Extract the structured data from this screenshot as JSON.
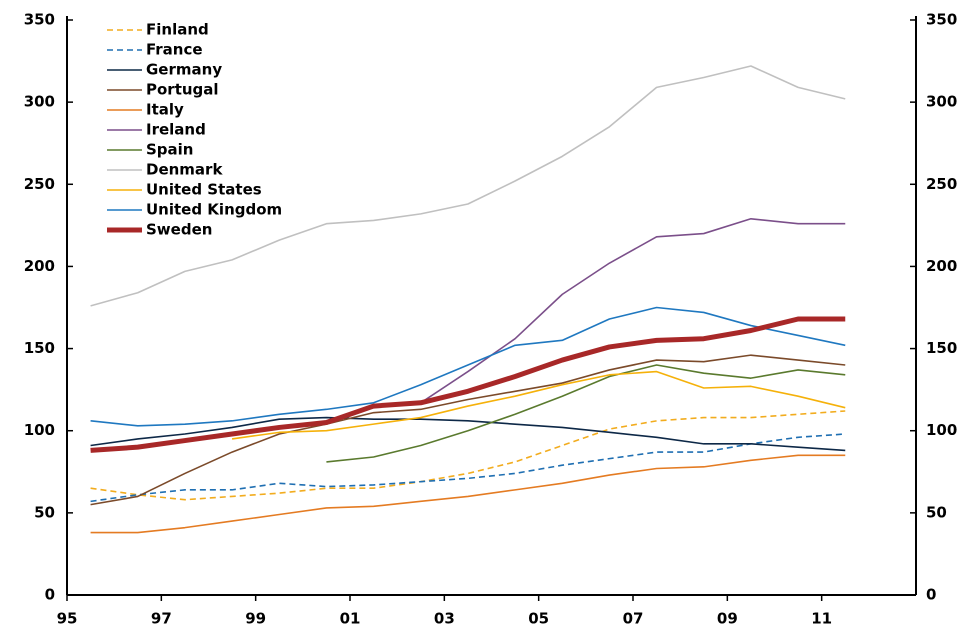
{
  "chart_data": {
    "type": "line",
    "x": [
      1995.5,
      1996.5,
      1997.5,
      1998.5,
      1999.5,
      2000.5,
      2001.5,
      2002.5,
      2003.5,
      2004.5,
      2005.5,
      2006.5,
      2007.5,
      2008.5,
      2009.5,
      2010.5,
      2011.5
    ],
    "xlim": [
      1995,
      2013
    ],
    "xticks": [
      {
        "value": 1995,
        "label": "95"
      },
      {
        "value": 1997,
        "label": "97"
      },
      {
        "value": 1999,
        "label": "99"
      },
      {
        "value": 2001,
        "label": "01"
      },
      {
        "value": 2003,
        "label": "03"
      },
      {
        "value": 2005,
        "label": "05"
      },
      {
        "value": 2007,
        "label": "07"
      },
      {
        "value": 2009,
        "label": "09"
      },
      {
        "value": 2011,
        "label": "11"
      }
    ],
    "ylim": [
      0,
      350
    ],
    "yticks": [
      0,
      50,
      100,
      150,
      200,
      250,
      300,
      350
    ],
    "y2lim": [
      0,
      350
    ],
    "y2ticks": [
      0,
      50,
      100,
      150,
      200,
      250,
      300,
      350
    ],
    "legend": "upper left",
    "grid": false,
    "series": [
      {
        "name": "Finland",
        "color": "#f2ac1e",
        "dashed": true,
        "linewidth": 1.6,
        "values": [
          65,
          61,
          58,
          60,
          62,
          65,
          65,
          69,
          74,
          81,
          91,
          101,
          106,
          108,
          108,
          110,
          112
        ]
      },
      {
        "name": "France",
        "color": "#1f6fb2",
        "dashed": true,
        "linewidth": 1.6,
        "values": [
          57,
          61,
          64,
          64,
          68,
          66,
          67,
          69,
          71,
          74,
          79,
          83,
          87,
          87,
          92,
          96,
          98
        ]
      },
      {
        "name": "Germany",
        "color": "#0d2847",
        "dashed": false,
        "linewidth": 1.6,
        "values": [
          91,
          95,
          98,
          102,
          107,
          108,
          107,
          107,
          106,
          104,
          102,
          99,
          96,
          92,
          92,
          90,
          88
        ]
      },
      {
        "name": "Portugal",
        "color": "#7b4a2a",
        "dashed": false,
        "linewidth": 1.6,
        "values": [
          55,
          60,
          74,
          87,
          98,
          104,
          111,
          113,
          119,
          124,
          129,
          137,
          143,
          142,
          146,
          143,
          140
        ]
      },
      {
        "name": "Italy",
        "color": "#e47b22",
        "dashed": false,
        "linewidth": 1.6,
        "values": [
          38,
          38,
          41,
          45,
          49,
          53,
          54,
          57,
          60,
          64,
          68,
          73,
          77,
          78,
          82,
          85,
          85
        ]
      },
      {
        "name": "Ireland",
        "color": "#7b4f8a",
        "dashed": false,
        "linewidth": 1.6,
        "values": [
          null,
          null,
          null,
          null,
          null,
          null,
          null,
          117,
          136,
          156,
          183,
          202,
          218,
          220,
          229,
          226,
          226
        ]
      },
      {
        "name": "Spain",
        "color": "#5a7a2e",
        "dashed": false,
        "linewidth": 1.6,
        "values": [
          null,
          null,
          null,
          null,
          null,
          81,
          84,
          91,
          100,
          110,
          121,
          133,
          140,
          135,
          132,
          137,
          134
        ]
      },
      {
        "name": "Denmark",
        "color": "#c0c0c0",
        "dashed": false,
        "linewidth": 1.6,
        "values": [
          176,
          184,
          197,
          204,
          216,
          226,
          228,
          232,
          238,
          252,
          267,
          285,
          309,
          315,
          322,
          309,
          302
        ]
      },
      {
        "name": "United States",
        "color": "#f5b10a",
        "dashed": false,
        "linewidth": 1.6,
        "values": [
          null,
          null,
          null,
          95,
          99,
          100,
          104,
          108,
          115,
          121,
          128,
          134,
          136,
          126,
          127,
          121,
          114
        ]
      },
      {
        "name": "United Kingdom",
        "color": "#1f78c0",
        "dashed": false,
        "linewidth": 1.6,
        "values": [
          106,
          103,
          104,
          106,
          110,
          113,
          117,
          128,
          140,
          152,
          155,
          168,
          175,
          172,
          164,
          158,
          152
        ]
      },
      {
        "name": "Sweden",
        "color": "#a82828",
        "dashed": false,
        "linewidth": 5,
        "values": [
          88,
          90,
          94,
          98,
          102,
          105,
          115,
          117,
          124,
          133,
          143,
          151,
          155,
          156,
          161,
          168,
          168
        ]
      }
    ]
  }
}
